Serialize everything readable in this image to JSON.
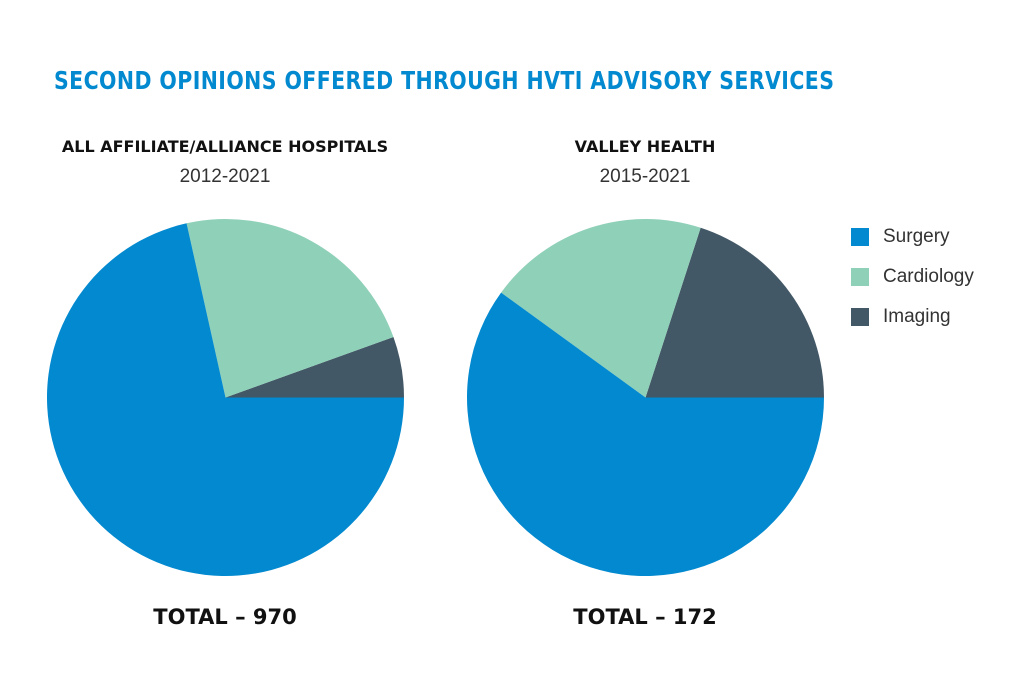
{
  "title": "SECOND OPINIONS OFFERED THROUGH HVTI ADVISORY SERVICES",
  "colors": {
    "title": "#0289cf",
    "surgery": "#0289cf",
    "cardiology": "#8fd0b8",
    "imaging": "#435866"
  },
  "legend": [
    {
      "label": "Surgery",
      "color": "#0289cf"
    },
    {
      "label": "Cardiology",
      "color": "#8fd0b8"
    },
    {
      "label": "Imaging",
      "color": "#435866"
    }
  ],
  "chart_data": [
    {
      "type": "pie",
      "title": "ALL AFFILIATE/ALLIANCE HOSPITALS",
      "subtitle": "2012-2021",
      "total_label": "TOTAL – 970",
      "categories": [
        "Surgery",
        "Cardiology",
        "Imaging"
      ],
      "values": [
        71.5,
        23,
        5.5
      ],
      "unit": "percent (estimated)",
      "legend_position": "right"
    },
    {
      "type": "pie",
      "title": "VALLEY HEALTH",
      "subtitle": "2015-2021",
      "total_label": "TOTAL – 172",
      "categories": [
        "Surgery",
        "Cardiology",
        "Imaging"
      ],
      "values": [
        60,
        20,
        20
      ],
      "unit": "percent (estimated)",
      "legend_position": "right"
    }
  ]
}
